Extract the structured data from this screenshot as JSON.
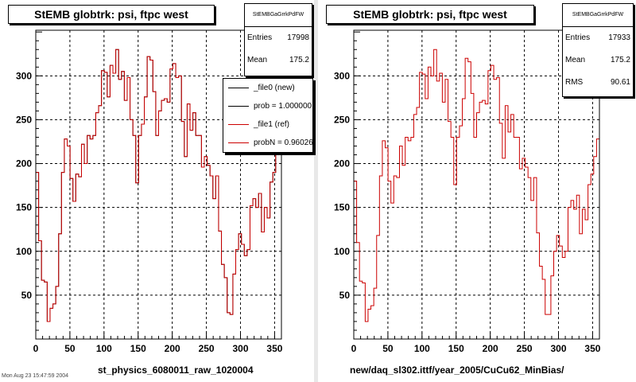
{
  "footer": "Mon Aug 23 15:47:59 2004",
  "chart_data": [
    {
      "type": "line",
      "title": "StEMB globtrk: psi, ftpc west",
      "xlabel": "st_physics_6080011_raw_1020004",
      "ylabel": "",
      "xlim": [
        0,
        360
      ],
      "ylim": [
        0,
        352
      ],
      "xticks": [
        0,
        50,
        100,
        150,
        200,
        250,
        300,
        350
      ],
      "yticks": [
        50,
        100,
        150,
        200,
        250,
        300
      ],
      "grid": true,
      "stats": {
        "name": "StEMBGaGrrkPdFW",
        "Entries": "17998",
        "Mean": "175.2"
      },
      "legend": {
        "placement": "top-right",
        "entries": [
          {
            "label": "_file0 (new)",
            "color": "#000000"
          },
          {
            "label": "prob = 1.000000",
            "color": "#000000"
          },
          {
            "label": "_file1 (ref)",
            "color": "#cc0000"
          },
          {
            "label": "probN = 0.960261",
            "color": "#cc0000"
          }
        ]
      },
      "series": [
        {
          "name": "_file0 (new)",
          "color": "#000000",
          "values": [
            190,
            112,
            67,
            65,
            20,
            35,
            40,
            60,
            120,
            190,
            228,
            220,
            183,
            157,
            188,
            185,
            222,
            200,
            232,
            228,
            232,
            258,
            266,
            306,
            304,
            276,
            312,
            303,
            330,
            296,
            305,
            272,
            298,
            250,
            232,
            178,
            232,
            245,
            276,
            322,
            318,
            282,
            232,
            260,
            272,
            274,
            270,
            308,
            314,
            298,
            300,
            248,
            208,
            268,
            238,
            258,
            232,
            232,
            196,
            208,
            198,
            186,
            160,
            186,
            123,
            85,
            70,
            30,
            28,
            74,
            102,
            120,
            108,
            95,
            102,
            152,
            160,
            150,
            166,
            122,
            150,
            138,
            179,
            190,
            210,
            230
          ]
        },
        {
          "name": "_file1 (ref)",
          "color": "#cc0000",
          "values": [
            190,
            112,
            67,
            65,
            20,
            35,
            40,
            60,
            120,
            190,
            228,
            220,
            183,
            157,
            188,
            185,
            222,
            200,
            232,
            228,
            232,
            258,
            266,
            306,
            304,
            276,
            312,
            303,
            330,
            296,
            305,
            272,
            298,
            250,
            232,
            178,
            232,
            245,
            276,
            322,
            318,
            282,
            232,
            260,
            272,
            274,
            270,
            308,
            314,
            298,
            300,
            248,
            208,
            268,
            238,
            258,
            232,
            232,
            196,
            208,
            198,
            186,
            160,
            186,
            123,
            85,
            70,
            30,
            28,
            74,
            102,
            120,
            108,
            95,
            102,
            152,
            160,
            150,
            166,
            122,
            150,
            138,
            179,
            190,
            210,
            230
          ]
        }
      ]
    },
    {
      "type": "line",
      "title": "StEMB globtrk: psi, ftpc west",
      "xlabel": "new/daq_sl302.ittf/year_2005/CuCu62_MinBias/",
      "ylabel": "",
      "xlim": [
        0,
        360
      ],
      "ylim": [
        0,
        352
      ],
      "xticks": [
        0,
        50,
        100,
        150,
        200,
        250,
        300,
        350
      ],
      "yticks": [
        50,
        100,
        150,
        200,
        250,
        300
      ],
      "grid": true,
      "stats": {
        "name": "StEMBGaGrrkPdFW",
        "Entries": "17933",
        "Mean": "175.2",
        "RMS": "90.61"
      },
      "series": [
        {
          "name": "",
          "color": "#cc0000",
          "values": [
            180,
            110,
            66,
            64,
            20,
            34,
            38,
            58,
            118,
            186,
            226,
            218,
            180,
            155,
            186,
            184,
            220,
            198,
            230,
            226,
            230,
            256,
            264,
            304,
            302,
            274,
            310,
            300,
            330,
            294,
            303,
            270,
            296,
            248,
            230,
            176,
            230,
            243,
            274,
            320,
            316,
            280,
            230,
            258,
            270,
            272,
            268,
            306,
            312,
            296,
            298,
            246,
            206,
            266,
            236,
            256,
            230,
            230,
            194,
            206,
            196,
            184,
            158,
            184,
            121,
            83,
            68,
            28,
            28,
            72,
            100,
            118,
            106,
            93,
            100,
            150,
            158,
            148,
            164,
            120,
            148,
            136,
            176,
            188,
            208,
            228
          ]
        }
      ]
    }
  ]
}
